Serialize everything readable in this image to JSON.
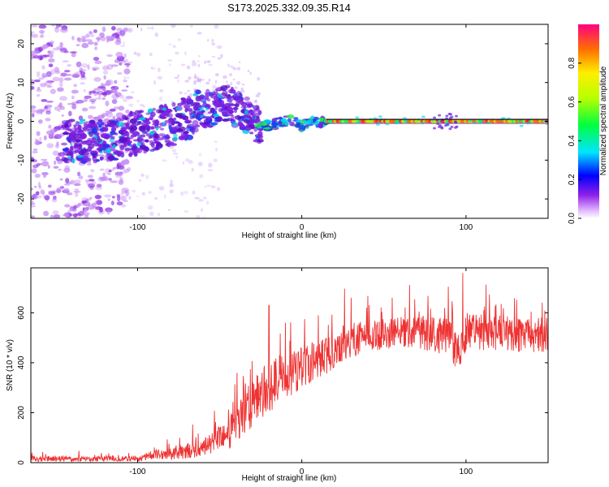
{
  "title": "S173.2025.332.09.35.R14",
  "chart_data": [
    {
      "type": "heatmap",
      "name": "spectrogram",
      "xlabel": "Height of straight line (km)",
      "ylabel": "Frequency (Hz)",
      "xlim": [
        -165,
        150
      ],
      "ylim": [
        -25,
        25
      ],
      "xticks": [
        -100,
        0,
        100
      ],
      "yticks": [
        -20,
        -10,
        0,
        10,
        20
      ],
      "colorbar": {
        "label": "Normalized spectral amplitude",
        "range": [
          0,
          1
        ],
        "ticks": [
          0.0,
          0.2,
          0.4,
          0.6,
          0.8
        ]
      },
      "ridge": [
        [
          -140,
          -5
        ],
        [
          -120,
          -5
        ],
        [
          -100,
          -3
        ],
        [
          -80,
          -1
        ],
        [
          -60,
          3
        ],
        [
          -45,
          4.5
        ],
        [
          -35,
          2
        ],
        [
          -25,
          -1.5
        ],
        [
          -15,
          -0.5
        ],
        [
          -5,
          0.5
        ],
        [
          0,
          -1.5
        ],
        [
          5,
          0.5
        ],
        [
          10,
          -0.5
        ],
        [
          15,
          0
        ],
        [
          150,
          0
        ]
      ]
    },
    {
      "type": "line",
      "name": "snr",
      "xlabel": "Height of straight line (km)",
      "ylabel": "SNR (10 * v/v)",
      "xlim": [
        -165,
        150
      ],
      "ylim": [
        0,
        780
      ],
      "xticks": [
        -100,
        0,
        100
      ],
      "yticks": [
        0,
        200,
        400,
        600
      ],
      "series": [
        {
          "name": "SNR",
          "color": "#ee3333",
          "envelope": [
            [
              -165,
              15
            ],
            [
              -100,
              15
            ],
            [
              -90,
              30
            ],
            [
              -70,
              45
            ],
            [
              -60,
              60
            ],
            [
              -45,
              110
            ],
            [
              -35,
              200
            ],
            [
              -25,
              270
            ],
            [
              -15,
              330
            ],
            [
              -5,
              360
            ],
            [
              5,
              400
            ],
            [
              15,
              430
            ],
            [
              25,
              480
            ],
            [
              40,
              510
            ],
            [
              60,
              520
            ],
            [
              80,
              520
            ],
            [
              90,
              500
            ],
            [
              95,
              440
            ],
            [
              100,
              520
            ],
            [
              120,
              520
            ],
            [
              150,
              510
            ]
          ],
          "noise": [
            [
              -165,
              15
            ],
            [
              -100,
              15
            ],
            [
              -80,
              40
            ],
            [
              -60,
              50
            ],
            [
              -40,
              110
            ],
            [
              -25,
              160
            ],
            [
              -10,
              130
            ],
            [
              0,
              120
            ],
            [
              10,
              110
            ],
            [
              20,
              110
            ],
            [
              40,
              90
            ],
            [
              60,
              90
            ],
            [
              80,
              110
            ],
            [
              100,
              110
            ],
            [
              150,
              100
            ]
          ],
          "spikes": [
            [
              -20,
              630
            ],
            [
              -10,
              560
            ],
            [
              10,
              590
            ],
            [
              30,
              660
            ],
            [
              55,
              660
            ],
            [
              98,
              760
            ]
          ]
        }
      ]
    }
  ]
}
